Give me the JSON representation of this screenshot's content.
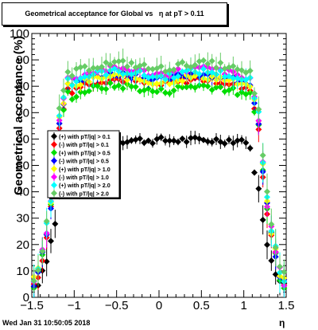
{
  "footer": {
    "timestamp": "Wed Jan 31 10:50:05 2018"
  },
  "chart_data": {
    "type": "scatter",
    "title": "Geometrical acceptance for Global vs   η at pT > 0.11",
    "xlabel": "η",
    "ylabel": "Geometrical acceptance (%)",
    "xlim": [
      -1.5,
      1.5
    ],
    "ylim": [
      0,
      100
    ],
    "x_ticks": [
      "−1.5",
      "−1",
      "−0.5",
      "0",
      "0.5",
      "1",
      "1.5"
    ],
    "y_ticks": [
      "0",
      "10",
      "20",
      "30",
      "40",
      "50",
      "60",
      "70",
      "80",
      "90",
      "100"
    ],
    "legend_position": "center-left",
    "series": [
      {
        "name": "(+) with pT/|q| > 0.1",
        "color": "#000000",
        "plateau": 59.5,
        "edge": 37,
        "end": 4
      },
      {
        "name": "(-) with pT/|q| > 0.1",
        "color": "#ff0000",
        "plateau": 83,
        "edge": 60,
        "end": 5
      },
      {
        "name": "(+) with pT/|q| > 0.5",
        "color": "#00dd00",
        "plateau": 80.5,
        "edge": 62,
        "end": 5
      },
      {
        "name": "(-) with pT/|q| > 0.5",
        "color": "#0000ff",
        "plateau": 85,
        "edge": 63,
        "end": 6
      },
      {
        "name": "(+) with pT/|q| > 1.0",
        "color": "#ffff00",
        "plateau": 84,
        "edge": 64,
        "end": 6
      },
      {
        "name": "(-) with pT/|q| > 1.0",
        "color": "#ff00ff",
        "plateau": 87,
        "edge": 64,
        "end": 6
      },
      {
        "name": "(+) with pT/|q| > 2.0",
        "color": "#00ffff",
        "plateau": 86,
        "edge": 66,
        "end": 7
      },
      {
        "name": "(-) with pT/|q| > 2.0",
        "color": "#66cc66",
        "plateau": 89,
        "edge": 67,
        "end": 8
      }
    ]
  }
}
